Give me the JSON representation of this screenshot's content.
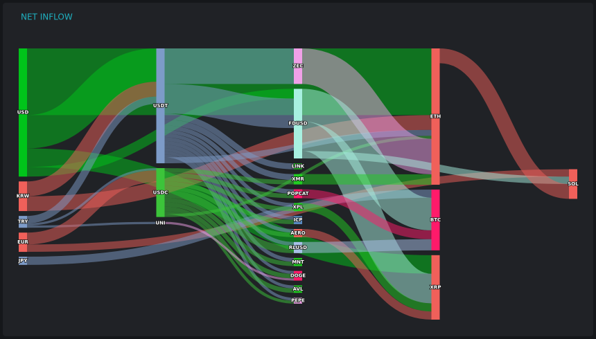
{
  "chart_data": {
    "type": "sankey",
    "title": "NET INFLOW",
    "nodes": [
      {
        "name": "USD",
        "color": "#00c41a"
      },
      {
        "name": "KRW",
        "color": "#f0605a"
      },
      {
        "name": "TRY",
        "color": "#7d9bc8"
      },
      {
        "name": "EUR",
        "color": "#f0605a"
      },
      {
        "name": "JPY",
        "color": "#7d9bc8"
      },
      {
        "name": "USDT",
        "color": "#7d9bc8"
      },
      {
        "name": "USDC",
        "color": "#3cc43a"
      },
      {
        "name": "UNI",
        "color": "#f0a0e8"
      },
      {
        "name": "ZEC",
        "color": "#f0a0e8"
      },
      {
        "name": "FDUSD",
        "color": "#a8f0e0"
      },
      {
        "name": "LINK",
        "color": "#22cc22"
      },
      {
        "name": "XMR",
        "color": "#22cc22"
      },
      {
        "name": "POPCAT",
        "color": "#ff1a6a"
      },
      {
        "name": "XPL",
        "color": "#22cc22"
      },
      {
        "name": "ICP",
        "color": "#5a8ac0"
      },
      {
        "name": "AERO",
        "color": "#f0605a"
      },
      {
        "name": "RLUSD",
        "color": "#a8c0e8"
      },
      {
        "name": "MNT",
        "color": "#22cc22"
      },
      {
        "name": "DOGE",
        "color": "#ff1a6a"
      },
      {
        "name": "AVL",
        "color": "#22cc22"
      },
      {
        "name": "PEPE",
        "color": "#f0a0e8"
      },
      {
        "name": "ETH",
        "color": "#f0605a"
      },
      {
        "name": "BTC",
        "color": "#ff1a6a"
      },
      {
        "name": "XRP",
        "color": "#f0605a"
      },
      {
        "name": "SOL",
        "color": "#f0605a"
      }
    ],
    "links": [
      {
        "source": "USD",
        "target": "ETH",
        "value": 90
      },
      {
        "source": "USD",
        "target": "USDT",
        "value": 45
      },
      {
        "source": "USD",
        "target": "XRP",
        "value": 25
      },
      {
        "source": "USD",
        "target": "FDUSD",
        "value": 13
      },
      {
        "source": "KRW",
        "target": "USDT",
        "value": 20
      },
      {
        "source": "KRW",
        "target": "ETH",
        "value": 20
      },
      {
        "source": "TRY",
        "target": "USDT",
        "value": 10
      },
      {
        "source": "TRY",
        "target": "USDC",
        "value": 3
      },
      {
        "source": "TRY",
        "target": "UNI",
        "value": 3
      },
      {
        "source": "EUR",
        "target": "USDC",
        "value": 16
      },
      {
        "source": "EUR",
        "target": "SOL",
        "value": 10
      },
      {
        "source": "JPY",
        "target": "BTC",
        "value": 11
      },
      {
        "source": "USDT",
        "target": "ZEC",
        "value": 48
      },
      {
        "source": "USDT",
        "target": "FDUSD",
        "value": 40
      },
      {
        "source": "USDT",
        "target": "LINK",
        "value": 8
      },
      {
        "source": "USDT",
        "target": "XMR",
        "value": 8
      },
      {
        "source": "USDT",
        "target": "POPCAT",
        "value": 6
      },
      {
        "source": "USDT",
        "target": "XPL",
        "value": 5
      },
      {
        "source": "USDT",
        "target": "ICP",
        "value": 5
      },
      {
        "source": "USDT",
        "target": "AERO",
        "value": 5
      },
      {
        "source": "USDT",
        "target": "RLUSD",
        "value": 5
      },
      {
        "source": "USDT",
        "target": "MNT",
        "value": 5
      },
      {
        "source": "USDT",
        "target": "DOGE",
        "value": 4
      },
      {
        "source": "USDT",
        "target": "AVL",
        "value": 4
      },
      {
        "source": "USDT",
        "target": "PEPE",
        "value": 4
      },
      {
        "source": "USDT",
        "target": "ETH",
        "value": 8
      },
      {
        "source": "USDC",
        "target": "XMR",
        "value": 6
      },
      {
        "source": "USDC",
        "target": "POPCAT",
        "value": 6
      },
      {
        "source": "USDC",
        "target": "XPL",
        "value": 6
      },
      {
        "source": "USDC",
        "target": "ICP",
        "value": 6
      },
      {
        "source": "USDC",
        "target": "AERO",
        "value": 6
      },
      {
        "source": "USDC",
        "target": "RLUSD",
        "value": 10
      },
      {
        "source": "USDC",
        "target": "MNT",
        "value": 6
      },
      {
        "source": "USDC",
        "target": "DOGE",
        "value": 6
      },
      {
        "source": "USDC",
        "target": "AVL",
        "value": 6
      },
      {
        "source": "USDC",
        "target": "PEPE",
        "value": 4
      },
      {
        "source": "USDC",
        "target": "ETH",
        "value": 4
      },
      {
        "source": "UNI",
        "target": "DOGE",
        "value": 3
      },
      {
        "source": "ZEC",
        "target": "ETH",
        "value": 48
      },
      {
        "source": "FDUSD",
        "target": "BTC",
        "value": 44
      },
      {
        "source": "FDUSD",
        "target": "XRP",
        "value": 40
      },
      {
        "source": "FDUSD",
        "target": "SOL",
        "value": 10
      },
      {
        "source": "XMR",
        "target": "ETH",
        "value": 14
      },
      {
        "source": "POPCAT",
        "target": "BTC",
        "value": 12
      },
      {
        "source": "XPL",
        "target": "XRP",
        "value": 11
      },
      {
        "source": "AERO",
        "target": "XRP",
        "value": 11
      },
      {
        "source": "RLUSD",
        "target": "BTC",
        "value": 15
      },
      {
        "source": "ETH",
        "target": "SOL",
        "value": 20
      }
    ]
  }
}
